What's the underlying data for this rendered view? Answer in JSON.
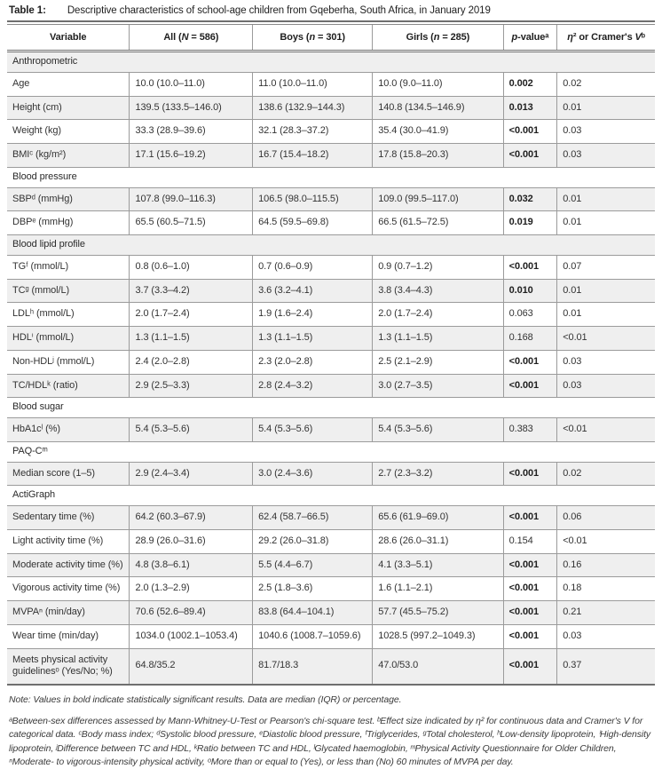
{
  "title": {
    "label": "Table 1:",
    "text": "Descriptive characteristics of school-age children from Gqeberha, South Africa, in January 2019"
  },
  "table": {
    "columns": [
      {
        "name": "variable",
        "segments": [
          {
            "t": "Variable"
          }
        ]
      },
      {
        "name": "all",
        "segments": [
          {
            "t": "All ("
          },
          {
            "t": "N",
            "i": true
          },
          {
            "t": " = 586)"
          }
        ]
      },
      {
        "name": "boys",
        "segments": [
          {
            "t": "Boys ("
          },
          {
            "t": "n",
            "i": true
          },
          {
            "t": " = 301)"
          }
        ]
      },
      {
        "name": "girls",
        "segments": [
          {
            "t": "Girls ("
          },
          {
            "t": "n",
            "i": true
          },
          {
            "t": " = 285)"
          }
        ]
      },
      {
        "name": "p-value",
        "segments": [
          {
            "t": "p",
            "i": true
          },
          {
            "t": "-valueᵃ"
          }
        ]
      },
      {
        "name": "effect-size",
        "segments": [
          {
            "t": "η",
            "i": true
          },
          {
            "t": "² or Cramer's "
          },
          {
            "t": "V",
            "i": true
          },
          {
            "t": "ᵇ"
          }
        ]
      }
    ],
    "rows": [
      {
        "type": "section",
        "label": "Anthropometric"
      },
      {
        "type": "data",
        "label": "Age",
        "all": "10.0 (10.0–11.0)",
        "boys": "11.0 (10.0–11.0)",
        "girls": "10.0 (9.0–11.0)",
        "p": "0.002",
        "p_bold": true,
        "effect": "0.02"
      },
      {
        "type": "data",
        "label": "Height (cm)",
        "all": "139.5 (133.5–146.0)",
        "boys": "138.6 (132.9–144.3)",
        "girls": "140.8 (134.5–146.9)",
        "p": "0.013",
        "p_bold": true,
        "effect": "0.01"
      },
      {
        "type": "data",
        "label": "Weight (kg)",
        "all": "33.3 (28.9–39.6)",
        "boys": "32.1 (28.3–37.2)",
        "girls": "35.4 (30.0–41.9)",
        "p": "<0.001",
        "p_bold": true,
        "effect": "0.03"
      },
      {
        "type": "data",
        "label": "BMIᶜ (kg/m²)",
        "all": "17.1 (15.6–19.2)",
        "boys": "16.7 (15.4–18.2)",
        "girls": "17.8 (15.8–20.3)",
        "p": "<0.001",
        "p_bold": true,
        "effect": "0.03"
      },
      {
        "type": "section",
        "label": "Blood pressure"
      },
      {
        "type": "data",
        "label": "SBPᵈ (mmHg)",
        "all": "107.8 (99.0–116.3)",
        "boys": "106.5 (98.0–115.5)",
        "girls": "109.0 (99.5–117.0)",
        "p": "0.032",
        "p_bold": true,
        "effect": "0.01"
      },
      {
        "type": "data",
        "label": "DBPᵉ (mmHg)",
        "all": "65.5 (60.5–71.5)",
        "boys": "64.5 (59.5–69.8)",
        "girls": "66.5 (61.5–72.5)",
        "p": "0.019",
        "p_bold": true,
        "effect": "0.01"
      },
      {
        "type": "section",
        "label": "Blood lipid profile"
      },
      {
        "type": "data",
        "label": "TGᶠ (mmol/L)",
        "all": "0.8 (0.6–1.0)",
        "boys": "0.7 (0.6–0.9)",
        "girls": "0.9 (0.7–1.2)",
        "p": "<0.001",
        "p_bold": true,
        "effect": "0.07"
      },
      {
        "type": "data",
        "label": "TCᵍ (mmol/L)",
        "all": "3.7 (3.3–4.2)",
        "boys": "3.6 (3.2–4.1)",
        "girls": "3.8 (3.4–4.3)",
        "p": "0.010",
        "p_bold": true,
        "effect": "0.01"
      },
      {
        "type": "data",
        "label": "LDLʰ (mmol/L)",
        "all": "2.0 (1.7–2.4)",
        "boys": "1.9 (1.6–2.4)",
        "girls": "2.0 (1.7–2.4)",
        "p": "0.063",
        "p_bold": false,
        "effect": "0.01"
      },
      {
        "type": "data",
        "label": "HDLⁱ (mmol/L)",
        "all": "1.3 (1.1–1.5)",
        "boys": "1.3 (1.1–1.5)",
        "girls": "1.3 (1.1–1.5)",
        "p": "0.168",
        "p_bold": false,
        "effect": "<0.01"
      },
      {
        "type": "data",
        "label": "Non-HDLʲ (mmol/L)",
        "all": "2.4 (2.0–2.8)",
        "boys": "2.3 (2.0–2.8)",
        "girls": "2.5 (2.1–2.9)",
        "p": "<0.001",
        "p_bold": true,
        "effect": "0.03"
      },
      {
        "type": "data",
        "label": "TC/HDLᵏ (ratio)",
        "all": "2.9 (2.5–3.3)",
        "boys": "2.8 (2.4–3.2)",
        "girls": "3.0 (2.7–3.5)",
        "p": "<0.001",
        "p_bold": true,
        "effect": "0.03"
      },
      {
        "type": "section",
        "label": "Blood sugar"
      },
      {
        "type": "data",
        "label": "HbA1cˡ (%)",
        "all": "5.4 (5.3–5.6)",
        "boys": "5.4 (5.3–5.6)",
        "girls": "5.4 (5.3–5.6)",
        "p": "0.383",
        "p_bold": false,
        "effect": "<0.01"
      },
      {
        "type": "section",
        "label": "PAQ-Cᵐ"
      },
      {
        "type": "data",
        "label": "Median score (1–5)",
        "all": "2.9 (2.4–3.4)",
        "boys": "3.0 (2.4–3.6)",
        "girls": "2.7 (2.3–3.2)",
        "p": "<0.001",
        "p_bold": true,
        "effect": "0.02"
      },
      {
        "type": "section",
        "label": "ActiGraph"
      },
      {
        "type": "data",
        "label": "Sedentary time (%)",
        "all": "64.2 (60.3–67.9)",
        "boys": "62.4 (58.7–66.5)",
        "girls": "65.6 (61.9–69.0)",
        "p": "<0.001",
        "p_bold": true,
        "effect": "0.06"
      },
      {
        "type": "data",
        "label": "Light activity time (%)",
        "all": "28.9 (26.0–31.6)",
        "boys": "29.2 (26.0–31.8)",
        "girls": "28.6 (26.0–31.1)",
        "p": "0.154",
        "p_bold": false,
        "effect": "<0.01"
      },
      {
        "type": "data",
        "label": "Moderate activity time (%)",
        "all": "4.8 (3.8–6.1)",
        "boys": "5.5 (4.4–6.7)",
        "girls": "4.1 (3.3–5.1)",
        "p": "<0.001",
        "p_bold": true,
        "effect": "0.16"
      },
      {
        "type": "data",
        "label": "Vigorous activity time (%)",
        "all": "2.0 (1.3–2.9)",
        "boys": "2.5 (1.8–3.6)",
        "girls": "1.6 (1.1–2.1)",
        "p": "<0.001",
        "p_bold": true,
        "effect": "0.18"
      },
      {
        "type": "data",
        "label": "MVPAⁿ (min/day)",
        "all": "70.6 (52.6–89.4)",
        "boys": "83.8 (64.4–104.1)",
        "girls": "57.7 (45.5–75.2)",
        "p": "<0.001",
        "p_bold": true,
        "effect": "0.21"
      },
      {
        "type": "data",
        "label": "Wear time (min/day)",
        "all": "1034.0 (1002.1–1053.4)",
        "boys": "1040.6 (1008.7–1059.6)",
        "girls": "1028.5 (997.2–1049.3)",
        "p": "<0.001",
        "p_bold": true,
        "effect": "0.03"
      },
      {
        "type": "data",
        "label": "Meets physical activity guidelinesᵒ (Yes/No; %)",
        "all": "64.8/35.2",
        "boys": "81.7/18.3",
        "girls": "47.0/53.0",
        "p": "<0.001",
        "p_bold": true,
        "effect": "0.37"
      }
    ]
  },
  "footnotes": {
    "note": "Note: Values in bold indicate statistically significant results. Data are median (IQR) or percentage.",
    "definitions": "ᵃBetween-sex differences assessed by Mann-Whitney-U-Test or Pearson's chi-square test. ᵇEffect size indicated by η² for continuous data and Cramer's V for categorical data. ᶜBody mass index; ᵈSystolic blood pressure, ᵉDiastolic blood pressure, ᶠTriglycerides, ᵍTotal cholesterol, ʰLow-density lipoprotein, ⁱHigh-density lipoprotein, ʲDifference between TC and HDL, ᵏRatio between TC and HDL, ˡGlycated haemoglobin, ᵐPhysical Activity Questionnaire for Older Children, ⁿModerate- to vigorous-intensity physical activity, ᵒMore than or equal to (Yes), or less than (No) 60 minutes of MVPA per day."
  },
  "colors": {
    "stripe_gray": "#efefef",
    "row_border": "#9b9b9b",
    "heavy_rule": "#6f6f6f",
    "text": "#333333"
  }
}
